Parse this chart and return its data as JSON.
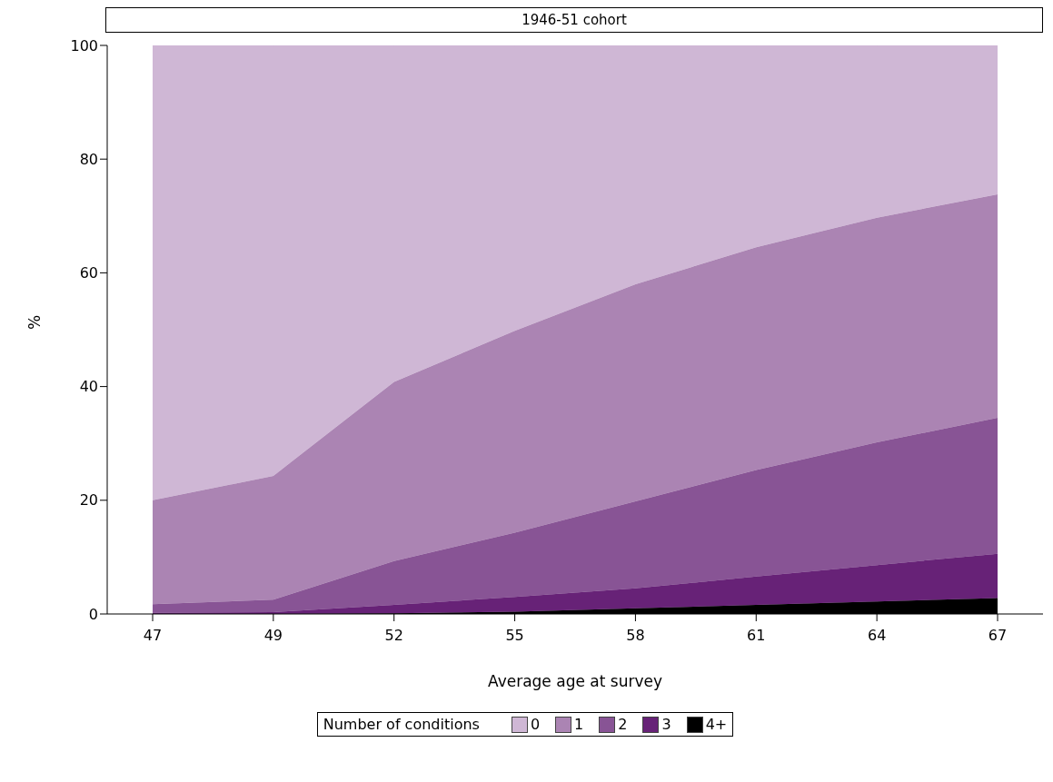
{
  "chart_data": {
    "type": "area",
    "title": "1946-51 cohort",
    "xlabel": "Average age at survey",
    "ylabel": "%",
    "legend_title": "Number of conditions",
    "categories": [
      "47",
      "49",
      "52",
      "55",
      "58",
      "61",
      "64",
      "67"
    ],
    "stacked": true,
    "series": [
      {
        "name": "4+",
        "color": "#000000",
        "values": [
          0,
          0,
          0.1,
          0.4,
          1.0,
          1.6,
          2.2,
          2.8
        ]
      },
      {
        "name": "3",
        "color": "#672277",
        "values": [
          0.2,
          0.3,
          1.5,
          2.6,
          3.5,
          5.0,
          6.4,
          7.8
        ]
      },
      {
        "name": "2",
        "color": "#885495",
        "values": [
          1.5,
          2.2,
          7.7,
          11.3,
          15.3,
          18.7,
          21.6,
          23.9
        ]
      },
      {
        "name": "1",
        "color": "#ab84b3",
        "values": [
          18.3,
          21.8,
          31.5,
          35.5,
          38.2,
          39.2,
          39.5,
          39.3
        ]
      },
      {
        "name": "0",
        "color": "#cfb7d5",
        "values": [
          80,
          75.7,
          59.2,
          50.2,
          42,
          35.5,
          30.3,
          26.2
        ]
      }
    ],
    "ylim": [
      0,
      100
    ],
    "yticks": [
      0,
      20,
      40,
      60,
      80,
      100
    ],
    "grid": false,
    "legend": "bottom"
  }
}
